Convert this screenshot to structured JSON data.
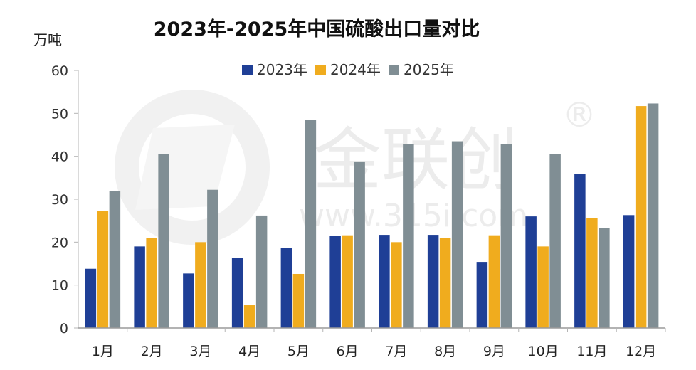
{
  "chart_data": {
    "type": "bar",
    "title": "2023年-2025年中国硫酸出口量对比",
    "ylabel": "万吨",
    "xlabel": "",
    "ylim": [
      0,
      60
    ],
    "yticks": [
      0,
      10,
      20,
      30,
      40,
      50,
      60
    ],
    "grid": false,
    "legend_position": "top-center",
    "categories": [
      "1月",
      "2月",
      "3月",
      "4月",
      "5月",
      "6月",
      "7月",
      "8月",
      "9月",
      "10月",
      "11月",
      "12月"
    ],
    "series": [
      {
        "name": "2023年",
        "color": "#1f3f96",
        "values": [
          13.8,
          19.0,
          12.7,
          16.4,
          18.7,
          21.4,
          21.7,
          21.7,
          15.4,
          26.0,
          35.8,
          26.3
        ]
      },
      {
        "name": "2024年",
        "color": "#f0ac1e",
        "values": [
          27.3,
          21.0,
          20.0,
          5.3,
          12.6,
          21.6,
          20.0,
          21.0,
          21.6,
          19.0,
          25.6,
          51.7
        ]
      },
      {
        "name": "2025年",
        "color": "#808e94",
        "values": [
          31.9,
          40.5,
          32.2,
          26.2,
          48.4,
          38.8,
          42.8,
          43.5,
          42.8,
          40.5,
          23.3,
          52.3
        ]
      }
    ]
  },
  "watermark": {
    "brand": "金联创",
    "url": "www.315i.com",
    "mark": "®"
  }
}
